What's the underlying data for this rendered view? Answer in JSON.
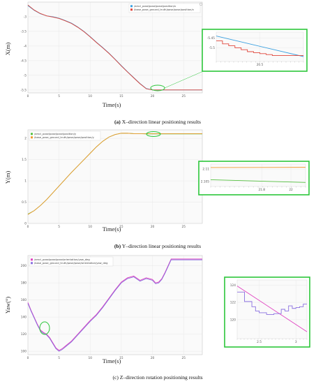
{
  "chart_data": [
    {
      "type": "line",
      "caption_letter": "(a)",
      "caption_text": "X–direction linear positioning results",
      "xlabel": "Time(s)",
      "ylabel": "X(m)",
      "xlim": [
        0,
        28
      ],
      "ylim": [
        -5.6,
        -2.5
      ],
      "x_ticks": [
        "0",
        "5",
        "10",
        "15",
        "20",
        "25"
      ],
      "y_ticks": [
        "-3",
        "-3.5",
        "-4",
        "-4.5",
        "-5",
        "-5.5"
      ],
      "series": [
        {
          "name": "/amcl_pose/pose/pose/position/x",
          "color": "#3aa0e0",
          "x": [
            0,
            1,
            2,
            3,
            4,
            5,
            6,
            7,
            8,
            9,
            10,
            11,
            12,
            13,
            14,
            15,
            16,
            17,
            18,
            19,
            20,
            21,
            22,
            23,
            24,
            25,
            26,
            27,
            28
          ],
          "y": [
            -2.62,
            -2.78,
            -2.9,
            -2.97,
            -3.0,
            -3.05,
            -3.13,
            -3.22,
            -3.35,
            -3.5,
            -3.68,
            -3.87,
            -4.05,
            -4.24,
            -4.45,
            -4.67,
            -4.88,
            -5.08,
            -5.28,
            -5.45,
            -5.5,
            -5.5,
            -5.5,
            -5.5,
            -5.5,
            -5.5,
            -5.5,
            -5.5,
            -5.5
          ]
        },
        {
          "name": "/base_pose_ground_truth/pose/pose/position/x",
          "color": "#e0453a",
          "x": [
            0,
            1,
            2,
            3,
            4,
            5,
            6,
            7,
            8,
            9,
            10,
            11,
            12,
            13,
            14,
            15,
            16,
            17,
            18,
            19,
            20,
            21,
            22,
            23,
            24,
            25,
            26,
            27,
            28
          ],
          "y": [
            -2.6,
            -2.77,
            -2.89,
            -2.97,
            -3.01,
            -3.06,
            -3.14,
            -3.23,
            -3.36,
            -3.51,
            -3.69,
            -3.88,
            -4.06,
            -4.25,
            -4.46,
            -4.68,
            -4.89,
            -5.09,
            -5.29,
            -5.46,
            -5.5,
            -5.5,
            -5.5,
            -5.5,
            -5.5,
            -5.5,
            -5.5,
            -5.5,
            -5.5
          ]
        }
      ],
      "inset": {
        "x_ticks": [
          "20.5"
        ],
        "y_ticks": [
          "-5.45",
          "-5.5"
        ],
        "xlim": [
          19.8,
          21.2
        ],
        "ylim": [
          -5.57,
          -5.42
        ],
        "series": [
          {
            "color": "#3aa0e0",
            "x": [
              19.8,
              21.2
            ],
            "y": [
              -5.44,
              -5.545
            ]
          },
          {
            "color": "#e0453a",
            "step": true,
            "x": [
              19.8,
              19.9,
              20.0,
              20.1,
              20.2,
              20.3,
              20.4,
              20.5,
              20.6,
              20.7,
              20.8,
              21.2
            ],
            "y": [
              -5.465,
              -5.48,
              -5.49,
              -5.5,
              -5.51,
              -5.52,
              -5.525,
              -5.53,
              -5.535,
              -5.54,
              -5.54,
              -5.54
            ]
          }
        ]
      }
    },
    {
      "type": "line",
      "caption_letter": "(b)",
      "caption_text": "Y–direction linear positioning results",
      "xlabel": "Time(s)",
      "ylabel": "Y(m)",
      "xlim": [
        0,
        28
      ],
      "ylim": [
        0,
        2.2
      ],
      "x_ticks": [
        "0",
        "5",
        "10",
        "15",
        "20",
        "25"
      ],
      "y_ticks": [
        "0",
        "0.5",
        "1",
        "1.5",
        "2"
      ],
      "series": [
        {
          "name": "/amcl_pose/pose/pose/position/y",
          "color": "#55c040",
          "x": [
            0,
            1,
            2,
            3,
            4,
            5,
            6,
            7,
            8,
            9,
            10,
            11,
            12,
            13,
            14,
            15,
            16,
            17,
            18,
            19,
            20,
            21,
            22,
            23,
            24,
            25,
            26,
            27,
            28
          ],
          "y": [
            0.22,
            0.3,
            0.42,
            0.56,
            0.72,
            0.88,
            1.04,
            1.2,
            1.35,
            1.5,
            1.65,
            1.8,
            1.93,
            2.03,
            2.09,
            2.12,
            2.12,
            2.11,
            2.11,
            2.105,
            2.105,
            2.105,
            2.105,
            2.105,
            2.105,
            2.105,
            2.105,
            2.105,
            2.105
          ]
        },
        {
          "name": "/base_pose_ground_truth/pose/pose/position/y",
          "color": "#f09a30",
          "x": [
            0,
            1,
            2,
            3,
            4,
            5,
            6,
            7,
            8,
            9,
            10,
            11,
            12,
            13,
            14,
            15,
            16,
            17,
            18,
            19,
            20,
            21,
            22,
            23,
            24,
            25,
            26,
            27,
            28
          ],
          "y": [
            0.21,
            0.3,
            0.42,
            0.56,
            0.72,
            0.88,
            1.04,
            1.2,
            1.35,
            1.5,
            1.65,
            1.8,
            1.93,
            2.03,
            2.09,
            2.12,
            2.12,
            2.11,
            2.11,
            2.11,
            2.11,
            2.11,
            2.11,
            2.11,
            2.11,
            2.11,
            2.11,
            2.11,
            2.11
          ]
        }
      ],
      "inset": {
        "x_ticks": [
          "21.8",
          "22"
        ],
        "y_ticks": [
          "2.11",
          "2.105"
        ],
        "xlim": [
          21.45,
          22.1
        ],
        "ylim": [
          2.103,
          2.112
        ],
        "series": [
          {
            "color": "#f09a30",
            "x": [
              21.45,
              22.1
            ],
            "y": [
              2.1106,
              2.1107
            ]
          },
          {
            "color": "#55c040",
            "x": [
              21.45,
              22.1
            ],
            "y": [
              2.1057,
              2.1046
            ]
          }
        ]
      }
    },
    {
      "type": "line",
      "caption_letter": "(c)",
      "caption_text": "Z–direction rotation positioning results",
      "caption_bold_letter": false,
      "xlabel": "Time(s)",
      "ylabel": "Yaw(°)",
      "xlim": [
        0,
        28
      ],
      "ylim": [
        96,
        212
      ],
      "x_ticks": [
        "0",
        "5",
        "10",
        "15",
        "20",
        "25"
      ],
      "y_ticks": [
        "100",
        "120",
        "140",
        "160",
        "180",
        "200"
      ],
      "series": [
        {
          "name": "/amcl_pose/pose/pose/orientation/yaw_deg",
          "color": "#e040c0",
          "x": [
            0,
            0.5,
            1,
            1.5,
            2,
            2.5,
            3,
            3.5,
            4,
            4.5,
            5,
            5.5,
            6,
            7,
            8,
            9,
            10,
            11,
            12,
            13,
            14,
            15,
            16,
            17,
            18,
            19,
            20,
            20.5,
            21,
            21.5,
            22,
            22.5,
            23,
            24,
            25,
            26,
            27,
            28
          ],
          "y": [
            157,
            148,
            140,
            132,
            125,
            122,
            120,
            116,
            110,
            104,
            101,
            103,
            106,
            112,
            120,
            128,
            136,
            143,
            152,
            162,
            172,
            181,
            186,
            188,
            183,
            186,
            184,
            180,
            181,
            185,
            192,
            200,
            208,
            208,
            208,
            208,
            208,
            208
          ]
        },
        {
          "name": "/base_pose_ground_truth/pose/pose/orientation/yaw_deg",
          "color": "#8a70e0",
          "x": [
            0,
            0.5,
            1,
            1.5,
            2,
            2.5,
            3,
            3.5,
            4,
            4.5,
            5,
            5.5,
            6,
            7,
            8,
            9,
            10,
            11,
            12,
            13,
            14,
            15,
            16,
            17,
            18,
            19,
            20,
            20.5,
            21,
            21.5,
            22,
            22.5,
            23,
            24,
            25,
            26,
            27,
            28
          ],
          "y": [
            156,
            147,
            139,
            131,
            124,
            121,
            119,
            115,
            109,
            103,
            100,
            102,
            105,
            111,
            119,
            127,
            135,
            142,
            151,
            161,
            171,
            180,
            185,
            187,
            182,
            185,
            183,
            179,
            180,
            184,
            191,
            199,
            207,
            207,
            207,
            207,
            207,
            207
          ]
        }
      ],
      "inset": {
        "x_ticks": [
          "2.5",
          "3"
        ],
        "y_ticks": [
          "124",
          "122",
          "120"
        ],
        "xlim": [
          2.2,
          3.15
        ],
        "ylim": [
          117.8,
          124.6
        ],
        "series": [
          {
            "color": "#e040c0",
            "x": [
              2.2,
              3.15
            ],
            "y": [
              123.9,
              118.6
            ]
          },
          {
            "color": "#8a70e0",
            "step": true,
            "x": [
              2.2,
              2.3,
              2.4,
              2.45,
              2.5,
              2.6,
              2.7,
              2.8,
              2.85,
              2.9,
              2.95,
              3.0,
              3.05,
              3.1,
              3.15
            ],
            "y": [
              123.2,
              122.1,
              121.5,
              121.0,
              120.8,
              120.6,
              120.7,
              121.2,
              121.0,
              121.6,
              121.3,
              121.4,
              121.5,
              121.8,
              121.8
            ]
          }
        ]
      }
    }
  ]
}
